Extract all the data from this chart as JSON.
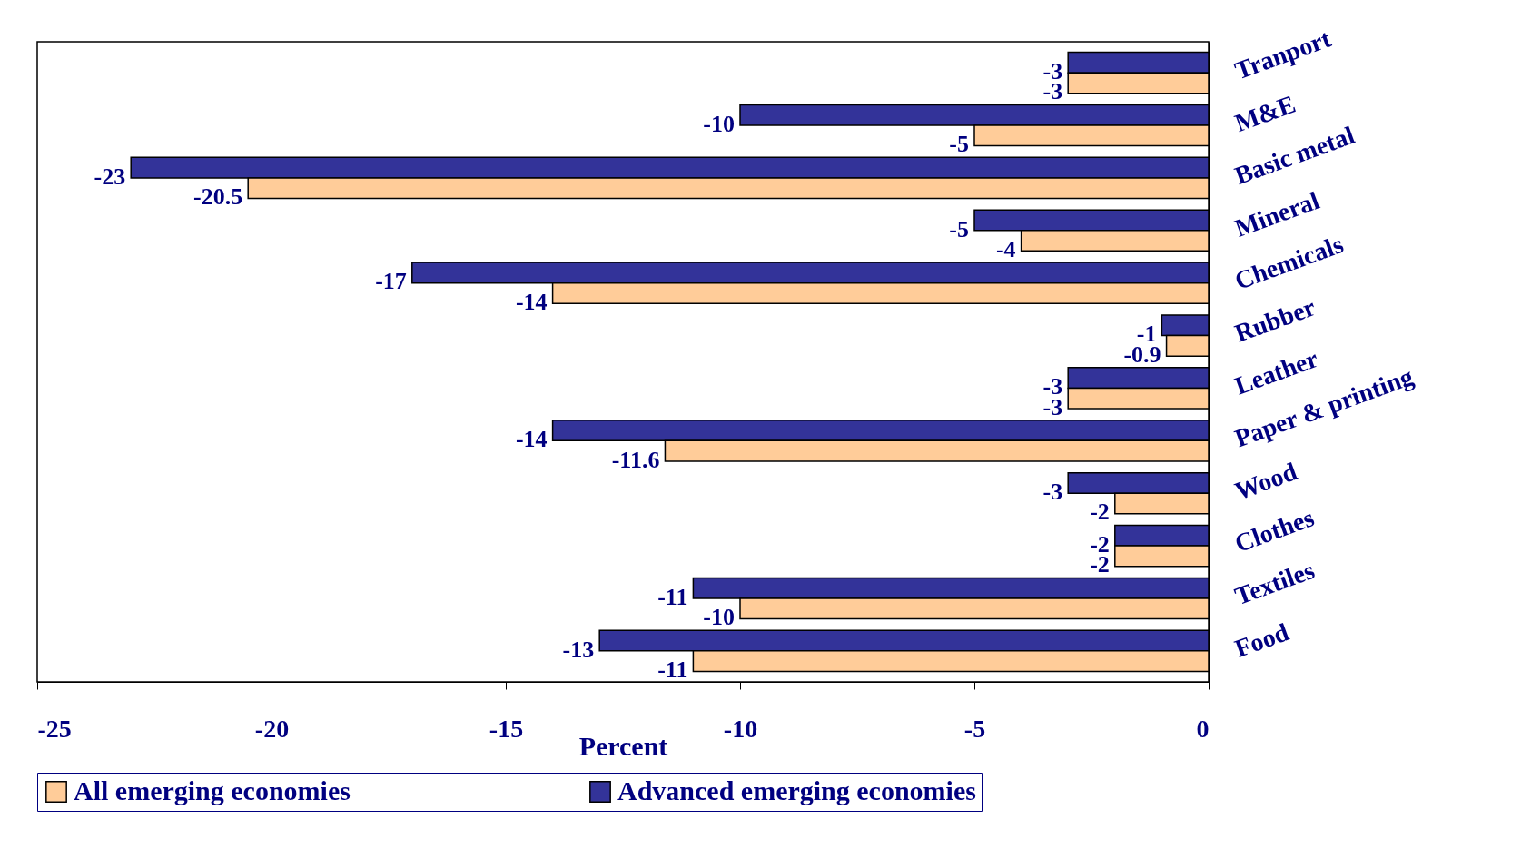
{
  "chart_data": {
    "type": "bar",
    "orientation": "horizontal",
    "xlabel": "Percent",
    "categories": [
      "Tranport",
      "M&E",
      "Basic metal",
      "Mineral",
      "Chemicals",
      "Rubber",
      "Leather",
      "Paper & printing",
      "Wood",
      "Clothes",
      "Textiles",
      "Food"
    ],
    "series": [
      {
        "name": "Advanced emerging economies",
        "color": "#333399",
        "values": [
          -3,
          -10,
          -23,
          -5,
          -17,
          -1,
          -3,
          -14,
          -3,
          -2,
          -11,
          -13
        ]
      },
      {
        "name": "All emerging economies",
        "color": "#ffcc99",
        "values": [
          -3,
          -5,
          -20.5,
          -4,
          -14,
          -0.9,
          -3,
          -11.6,
          -2,
          -2,
          -10,
          -11
        ]
      }
    ],
    "xlim": [
      -25,
      0
    ],
    "xticks": [
      -25,
      -20,
      -15,
      -10,
      -5,
      0
    ],
    "data_labels": true,
    "legend": "bottom"
  }
}
